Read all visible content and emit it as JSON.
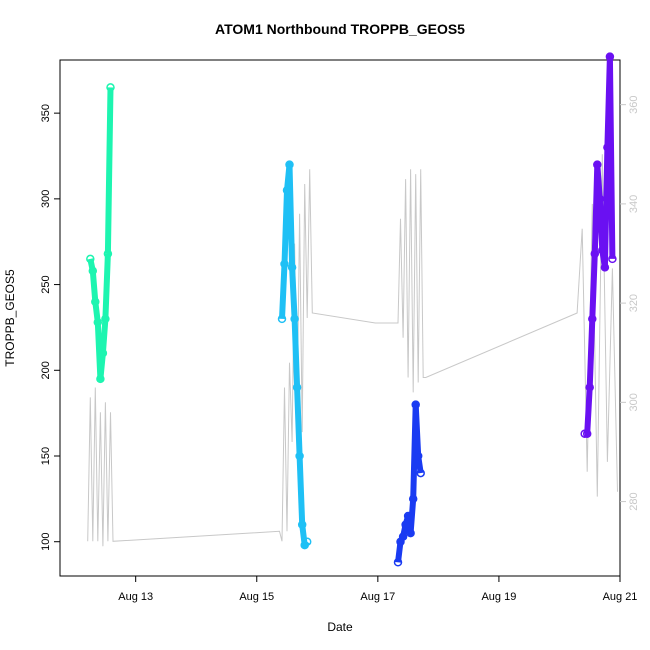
{
  "chart_data": {
    "type": "scatter",
    "title": "ATOM1 Northbound TROPPB_GEOS5",
    "xlabel": "Date",
    "ylabel": "TROPPB_GEOS5",
    "xlim": [
      "2016-08-11T18:00",
      "2016-08-21T00:00"
    ],
    "ylim_left": [
      80,
      381
    ],
    "ylim_right": [
      265,
      369
    ],
    "x_ticks": [
      "Aug 13",
      "Aug 15",
      "Aug 17",
      "Aug 19",
      "Aug 21"
    ],
    "x_tick_dates": [
      "2016-08-13",
      "2016-08-15",
      "2016-08-17",
      "2016-08-19",
      "2016-08-21"
    ],
    "y_ticks_left": [
      100,
      150,
      200,
      250,
      300,
      350
    ],
    "y_ticks_right": [
      280,
      300,
      320,
      340,
      360
    ],
    "grid": false,
    "right_axis_color": "#c8c8c8",
    "series": [
      {
        "color": "#1df5b0",
        "axis": "left",
        "x": [
          "2016-08-12T06:00",
          "2016-08-12T07:00",
          "2016-08-12T08:00",
          "2016-08-12T09:00",
          "2016-08-12T10:00",
          "2016-08-12T11:00",
          "2016-08-12T12:00",
          "2016-08-12T13:00",
          "2016-08-12T14:00"
        ],
        "y": [
          265,
          258,
          240,
          228,
          195,
          210,
          230,
          268,
          365
        ]
      },
      {
        "color": "#1fc0f5",
        "axis": "left",
        "x": [
          "2016-08-15T10:00",
          "2016-08-15T11:00",
          "2016-08-15T12:00",
          "2016-08-15T13:00",
          "2016-08-15T14:00",
          "2016-08-15T15:00",
          "2016-08-15T16:00",
          "2016-08-15T17:00",
          "2016-08-15T18:00",
          "2016-08-15T19:00",
          "2016-08-15T20:00"
        ],
        "y": [
          230,
          262,
          305,
          320,
          260,
          230,
          190,
          150,
          110,
          98,
          100
        ]
      },
      {
        "color": "#1a3bf2",
        "axis": "left",
        "x": [
          "2016-08-17T08:00",
          "2016-08-17T09:00",
          "2016-08-17T10:00",
          "2016-08-17T11:00",
          "2016-08-17T12:00",
          "2016-08-17T13:00",
          "2016-08-17T14:00",
          "2016-08-17T15:00",
          "2016-08-17T16:00",
          "2016-08-17T17:00"
        ],
        "y": [
          88,
          100,
          103,
          110,
          115,
          105,
          125,
          180,
          150,
          140
        ]
      },
      {
        "color": "#6a10f2",
        "axis": "left",
        "x": [
          "2016-08-20T10:00",
          "2016-08-20T11:00",
          "2016-08-20T12:00",
          "2016-08-20T13:00",
          "2016-08-20T14:00",
          "2016-08-20T15:00",
          "2016-08-20T16:00",
          "2016-08-20T17:00",
          "2016-08-20T18:00",
          "2016-08-20T19:00",
          "2016-08-20T20:00",
          "2016-08-20T21:00"
        ],
        "y": [
          163,
          163,
          190,
          230,
          268,
          320,
          300,
          270,
          260,
          330,
          383,
          265
        ]
      }
    ],
    "overlay": {
      "color": "#c8c8c8",
      "axis": "right",
      "x": [
        "2016-08-12T05:00",
        "2016-08-12T06:00",
        "2016-08-12T07:00",
        "2016-08-12T08:00",
        "2016-08-12T09:00",
        "2016-08-12T10:00",
        "2016-08-12T11:00",
        "2016-08-12T12:00",
        "2016-08-12T13:00",
        "2016-08-12T14:00",
        "2016-08-12T15:00",
        "2016-08-15T09:00",
        "2016-08-15T10:00",
        "2016-08-15T11:00",
        "2016-08-15T12:00",
        "2016-08-15T13:00",
        "2016-08-15T14:00",
        "2016-08-15T15:00",
        "2016-08-15T16:00",
        "2016-08-15T17:00",
        "2016-08-15T18:00",
        "2016-08-15T19:00",
        "2016-08-15T20:00",
        "2016-08-15T21:00",
        "2016-08-15T22:00",
        "2016-08-16T23:00",
        "2016-08-17T08:00",
        "2016-08-17T09:00",
        "2016-08-17T10:00",
        "2016-08-17T11:00",
        "2016-08-17T12:00",
        "2016-08-17T13:00",
        "2016-08-17T14:00",
        "2016-08-17T15:00",
        "2016-08-17T16:00",
        "2016-08-17T17:00",
        "2016-08-17T18:00",
        "2016-08-17T19:00",
        "2016-08-20T07:00",
        "2016-08-20T09:00",
        "2016-08-20T11:00",
        "2016-08-20T13:00",
        "2016-08-20T15:00",
        "2016-08-20T17:00",
        "2016-08-20T19:00",
        "2016-08-20T21:00",
        "2016-08-20T23:00"
      ],
      "y": [
        272,
        301,
        272,
        303,
        272,
        298,
        271,
        300,
        272,
        298,
        272,
        274,
        272,
        303,
        274,
        308,
        292,
        332,
        298,
        338,
        294,
        344,
        317,
        347,
        318,
        316,
        316,
        337,
        313,
        345,
        305,
        347,
        302,
        346,
        304,
        347,
        305,
        305,
        318,
        335,
        286,
        340,
        281,
        350,
        288,
        327,
        282
      ]
    }
  }
}
